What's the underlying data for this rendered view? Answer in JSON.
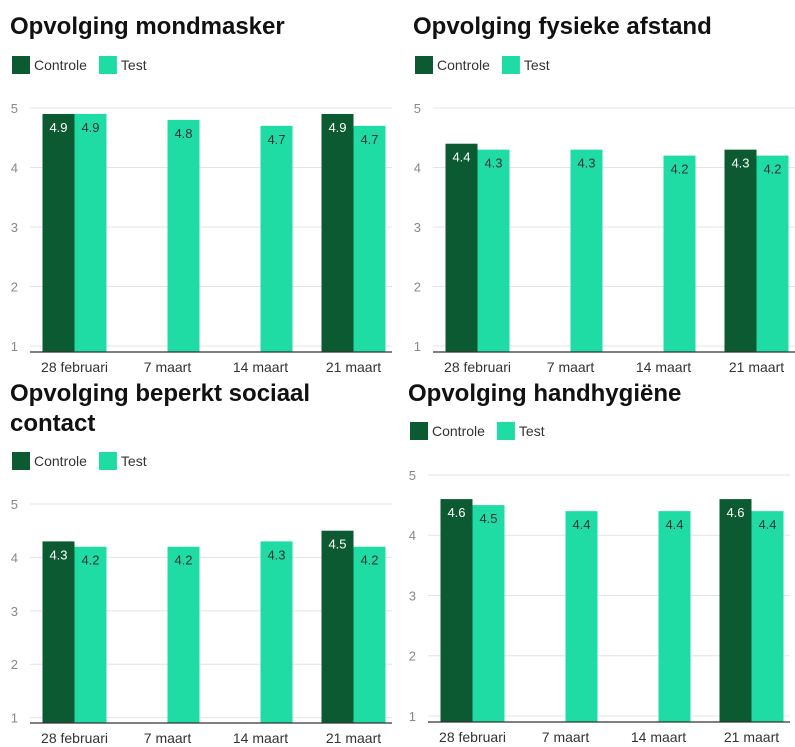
{
  "chart_data": [
    {
      "type": "bar",
      "title": "Opvolging mondmasker",
      "categories": [
        "28 februari",
        "7 maart",
        "14 maart",
        "21 maart"
      ],
      "series": [
        {
          "name": "Controle",
          "color": "#0b5a31",
          "values": [
            4.9,
            null,
            null,
            4.9
          ]
        },
        {
          "name": "Test",
          "color": "#1fdca4",
          "values": [
            4.9,
            4.8,
            4.7,
            4.7
          ]
        }
      ],
      "ylim": [
        0.9,
        5
      ],
      "yticks": [
        1,
        2,
        3,
        4,
        5
      ],
      "grid": true
    },
    {
      "type": "bar",
      "title": "Opvolging fysieke afstand",
      "categories": [
        "28 februari",
        "7 maart",
        "14 maart",
        "21 maart"
      ],
      "series": [
        {
          "name": "Controle",
          "color": "#0b5a31",
          "values": [
            4.4,
            null,
            null,
            4.3
          ]
        },
        {
          "name": "Test",
          "color": "#1fdca4",
          "values": [
            4.3,
            4.3,
            4.2,
            4.2
          ]
        }
      ],
      "ylim": [
        0.9,
        5
      ],
      "yticks": [
        1,
        2,
        3,
        4,
        5
      ],
      "grid": true
    },
    {
      "type": "bar",
      "title": "Opvolging beperkt sociaal contact",
      "categories": [
        "28 februari",
        "7 maart",
        "14 maart",
        "21 maart"
      ],
      "series": [
        {
          "name": "Controle",
          "color": "#0b5a31",
          "values": [
            4.3,
            null,
            null,
            4.5
          ]
        },
        {
          "name": "Test",
          "color": "#1fdca4",
          "values": [
            4.2,
            4.2,
            4.3,
            4.2
          ]
        }
      ],
      "ylim": [
        0.9,
        5
      ],
      "yticks": [
        1,
        2,
        3,
        4,
        5
      ],
      "grid": true
    },
    {
      "type": "bar",
      "title": "Opvolging handhygiëne",
      "categories": [
        "28 februari",
        "7 maart",
        "14 maart",
        "21 maart"
      ],
      "series": [
        {
          "name": "Controle",
          "color": "#0b5a31",
          "values": [
            4.6,
            null,
            null,
            4.6
          ]
        },
        {
          "name": "Test",
          "color": "#1fdca4",
          "values": [
            4.5,
            4.4,
            4.4,
            4.4
          ]
        }
      ],
      "ylim": [
        0.9,
        5
      ],
      "yticks": [
        1,
        2,
        3,
        4,
        5
      ],
      "grid": true
    }
  ]
}
